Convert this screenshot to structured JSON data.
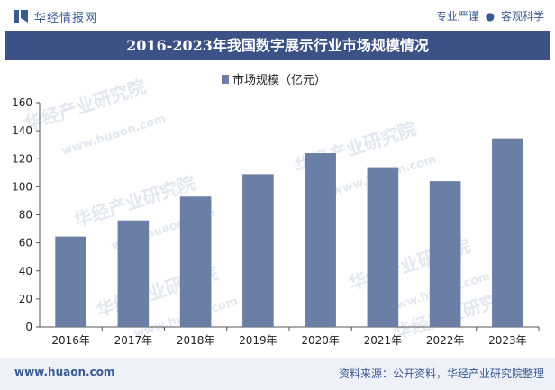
{
  "header": {
    "logo_text": "华经情报网",
    "slogan_left": "专业严谨",
    "slogan_dot": "●",
    "slogan_right": "客观科学"
  },
  "title": "2016-2023年我国数字展示行业市场规模情况",
  "watermark": {
    "cn": "华经产业研究院",
    "en": "www.huaon.com"
  },
  "colors": {
    "bar": "#6b7ea5",
    "title_bg": "#3c5286",
    "accent": "#3a5a93"
  },
  "chart_data": {
    "type": "bar",
    "title": "2016-2023年我国数字展示行业市场规模情况",
    "categories": [
      "2016年",
      "2017年",
      "2018年",
      "2019年",
      "2020年",
      "2021年",
      "2022年",
      "2023年"
    ],
    "series": [
      {
        "name": "市场规模（亿元）",
        "values": [
          64.5,
          76,
          93,
          109,
          124,
          114,
          104,
          134.5
        ]
      }
    ],
    "ylim": [
      0,
      160
    ],
    "yticks": [
      0,
      20,
      40,
      60,
      80,
      100,
      120,
      140,
      160
    ],
    "legend_position": "top-center",
    "grid": false
  },
  "footer": {
    "url": "www.huaon.com",
    "source": "资料来源：公开资料，华经产业研究院整理"
  }
}
